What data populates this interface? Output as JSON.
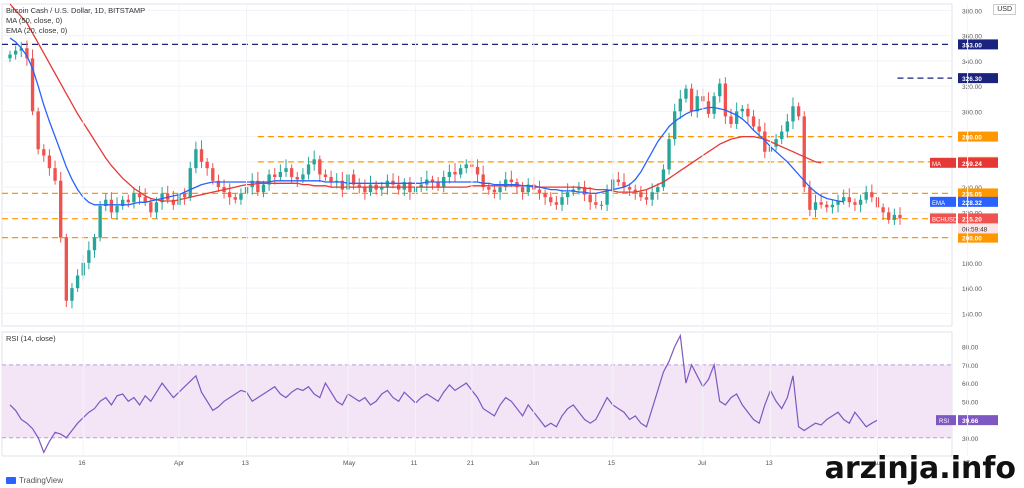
{
  "header": {
    "title": "Bitcoin Cash / U.S. Dollar, 1D, BITSTAMP",
    "ma_label": "MA (50, close, 0)",
    "ema_label": "EMA (20, close, 0)",
    "currency_button": "USD"
  },
  "rsi_header": "RSI (14, close)",
  "branding": {
    "platform": "TradingView",
    "watermark": "arzinja.info"
  },
  "colors": {
    "candle_up": "#26a69a",
    "candle_down": "#ef5350",
    "ema": "#2962ff",
    "ma": "#e53935",
    "orange_level": "#ff9800",
    "navy_level": "#1a237e",
    "rsi_line": "#7e57c2",
    "rsi_band": "#f3e5f5"
  },
  "chart_data": [
    {
      "type": "candlestick",
      "title": "Bitcoin Cash / U.S. Dollar, 1D, BITSTAMP",
      "ylim": [
        130,
        385
      ],
      "yticks": [
        "380.00",
        "360.00",
        "340.00",
        "320.00",
        "300.00",
        "280.00",
        "260.00",
        "240.00",
        "220.00",
        "200.00",
        "180.00",
        "160.00",
        "140.00"
      ],
      "ytick_values": [
        380,
        360,
        340,
        320,
        300,
        280,
        260,
        240,
        220,
        200,
        180,
        160,
        140
      ],
      "xticks": [
        {
          "label": "16",
          "i": 13
        },
        {
          "label": "Apr",
          "i": 30
        },
        {
          "label": "13",
          "i": 42
        },
        {
          "label": "May",
          "i": 60
        },
        {
          "label": "11",
          "i": 72
        },
        {
          "label": "21",
          "i": 82
        },
        {
          "label": "Jun",
          "i": 93
        },
        {
          "label": "15",
          "i": 107
        },
        {
          "label": "Jul",
          "i": 123
        },
        {
          "label": "13",
          "i": 135
        },
        {
          "label": "Aug",
          "i": 154
        },
        {
          "label": "17",
          "i": 170
        },
        {
          "label": "Sep",
          "i": 185
        }
      ],
      "close": [
        345,
        348,
        350,
        342,
        300,
        270,
        265,
        255,
        245,
        200,
        150,
        160,
        170,
        180,
        190,
        200,
        225,
        230,
        220,
        225,
        230,
        228,
        235,
        232,
        228,
        220,
        228,
        235,
        230,
        226,
        235,
        232,
        255,
        270,
        260,
        255,
        245,
        240,
        236,
        232,
        230,
        235,
        240,
        245,
        236,
        242,
        250,
        248,
        252,
        255,
        248,
        246,
        250,
        258,
        262,
        250,
        248,
        244,
        245,
        238,
        250,
        242,
        240,
        236,
        242,
        238,
        240,
        245,
        242,
        238,
        244,
        236,
        240,
        242,
        246,
        244,
        240,
        248,
        252,
        250,
        255,
        258,
        256,
        250,
        240,
        238,
        236,
        240,
        246,
        244,
        240,
        236,
        242,
        238,
        235,
        232,
        228,
        226,
        232,
        236,
        238,
        240,
        234,
        228,
        226,
        226,
        238,
        246,
        244,
        240,
        238,
        236,
        232,
        230,
        236,
        240,
        254,
        278,
        300,
        310,
        318,
        300,
        312,
        308,
        298,
        312,
        322,
        296,
        290,
        300,
        302,
        296,
        288,
        284,
        268,
        272,
        278,
        284,
        292,
        304,
        296,
        240,
        222,
        228,
        226,
        224,
        226,
        229,
        232,
        228,
        226,
        230,
        236,
        232,
        224,
        220,
        214,
        218,
        215.2
      ],
      "ma50": [
        385,
        380,
        375,
        370,
        362,
        354,
        346,
        338,
        330,
        322,
        314,
        306,
        298,
        291,
        284,
        277,
        270,
        263,
        257,
        252,
        247,
        243,
        239,
        236,
        233,
        231,
        230,
        229,
        229,
        229,
        230,
        231,
        232,
        233,
        234,
        235,
        236,
        237,
        238,
        239,
        240,
        241,
        242,
        242,
        243,
        243,
        243,
        243,
        243,
        243,
        243,
        243,
        242,
        242,
        241,
        241,
        241,
        240,
        240,
        240,
        240,
        240,
        240,
        240,
        240,
        240,
        240,
        240,
        240,
        240,
        240,
        240,
        240,
        240,
        240,
        240,
        240,
        240,
        240,
        240,
        240,
        240,
        241,
        241,
        241,
        241,
        241,
        241,
        241,
        241,
        241,
        241,
        241,
        241,
        240,
        240,
        240,
        240,
        240,
        240,
        240,
        240,
        239,
        239,
        238,
        238,
        238,
        237,
        236,
        236,
        236,
        236,
        237,
        238,
        240,
        242,
        244,
        247,
        250,
        253,
        256,
        259,
        262,
        265,
        268,
        271,
        274,
        276,
        278,
        279,
        280,
        280,
        280,
        279,
        278,
        276,
        274,
        272,
        270,
        268,
        266,
        264,
        262,
        260,
        259.24
      ],
      "ema20": [
        358,
        355,
        350,
        344,
        334,
        320,
        305,
        292,
        280,
        268,
        256,
        246,
        238,
        232,
        228,
        226,
        226,
        226,
        226,
        226,
        226,
        226,
        227,
        228,
        228,
        229,
        230,
        231,
        232,
        233,
        234,
        236,
        238,
        240,
        242,
        243,
        244,
        244,
        244,
        244,
        244,
        244,
        244,
        244,
        244,
        244,
        244,
        245,
        245,
        245,
        245,
        245,
        245,
        245,
        245,
        245,
        244,
        244,
        244,
        244,
        243,
        243,
        243,
        243,
        243,
        243,
        243,
        243,
        243,
        243,
        243,
        243,
        243,
        243,
        244,
        244,
        244,
        244,
        244,
        244,
        244,
        244,
        244,
        244,
        243,
        243,
        242,
        242,
        242,
        242,
        242,
        241,
        241,
        240,
        240,
        239,
        238,
        238,
        237,
        237,
        237,
        236,
        236,
        235,
        235,
        236,
        237,
        238,
        239,
        240,
        242,
        246,
        252,
        260,
        268,
        276,
        282,
        288,
        292,
        295,
        298,
        300,
        301,
        302,
        303,
        303,
        302,
        301,
        299,
        297,
        294,
        290,
        285,
        281,
        277,
        272,
        268,
        264,
        260,
        255,
        250,
        245,
        240,
        236,
        233,
        231,
        230,
        229,
        228.32
      ],
      "current_price": 215.2,
      "levels": [
        {
          "value": 353,
          "label": "353.00",
          "style": "navy-dashed"
        },
        {
          "value": 326.3,
          "label": "326.30",
          "style": "navy-dashed",
          "start": "Aug"
        },
        {
          "value": 280,
          "label": "280.00",
          "style": "orange-dashed"
        },
        {
          "value": 260,
          "label": "260.00",
          "style": "orange-dashed"
        },
        {
          "value": 235,
          "label": "235.05",
          "style": "orange-dashed"
        },
        {
          "value": 215,
          "label": "215.00",
          "style": "orange-dashed"
        },
        {
          "value": 200,
          "label": "200.00",
          "style": "orange-dashed"
        }
      ],
      "badges": [
        {
          "name": "MA",
          "value": 259.24,
          "text": "259.24",
          "color": "#e53935"
        },
        {
          "name": "EMA",
          "value": 228.32,
          "text": "228.32",
          "color": "#2962ff"
        },
        {
          "name": "BCHUSD",
          "value": 215.2,
          "text": "215.20",
          "color": "#ef5350"
        }
      ],
      "countdown": "06:59:48"
    },
    {
      "type": "line",
      "title": "RSI (14, close)",
      "ylim": [
        20,
        88
      ],
      "yticks": [
        "80.00",
        "70.00",
        "60.00",
        "50.00",
        "40.00",
        "30.00"
      ],
      "ytick_values": [
        80,
        70,
        60,
        50,
        40,
        30
      ],
      "band": [
        30,
        70
      ],
      "series": [
        {
          "name": "RSI",
          "values": [
            48,
            45,
            40,
            38,
            35,
            30,
            22,
            28,
            33,
            32,
            30,
            34,
            38,
            41,
            44,
            46,
            50,
            52,
            48,
            53,
            54,
            50,
            52,
            48,
            53,
            50,
            55,
            60,
            56,
            52,
            55,
            58,
            61,
            64,
            55,
            50,
            45,
            47,
            50,
            52,
            54,
            56,
            55,
            50,
            52,
            54,
            56,
            58,
            54,
            52,
            55,
            57,
            56,
            58,
            54,
            52,
            60,
            55,
            50,
            48,
            54,
            52,
            50,
            52,
            48,
            50,
            54,
            56,
            52,
            50,
            55,
            52,
            49,
            52,
            54,
            52,
            50,
            55,
            59,
            56,
            58,
            60,
            56,
            52,
            46,
            44,
            42,
            48,
            52,
            50,
            46,
            42,
            48,
            44,
            40,
            36,
            38,
            36,
            42,
            46,
            48,
            44,
            40,
            38,
            40,
            46,
            52,
            48,
            46,
            44,
            40,
            42,
            38,
            36,
            46,
            56,
            66,
            72,
            80,
            86,
            60,
            70,
            64,
            58,
            62,
            70,
            50,
            48,
            52,
            54,
            48,
            44,
            40,
            38,
            48,
            56,
            50,
            46,
            52,
            64,
            36,
            34,
            36,
            38,
            37,
            40,
            42,
            44,
            40,
            38,
            44,
            40,
            36,
            38,
            39.66
          ]
        }
      ],
      "badge": {
        "name": "RSI",
        "value": 39.66,
        "text": "39.66"
      }
    }
  ]
}
